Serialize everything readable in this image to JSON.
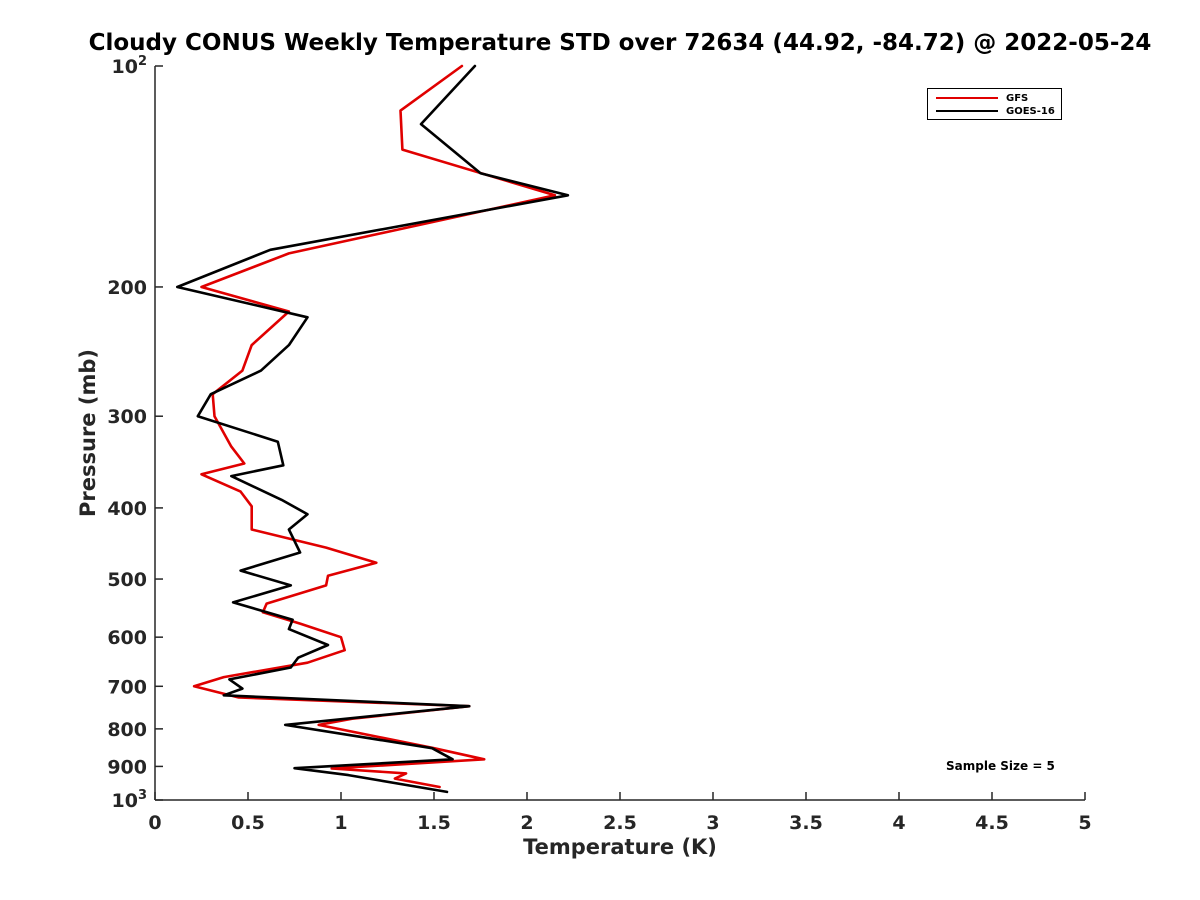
{
  "chart_data": {
    "type": "line",
    "title": "Cloudy CONUS Weekly Temperature STD over 72634 (44.92, -84.72) @ 2022-05-24",
    "xlabel": "Temperature (K)",
    "ylabel": "Pressure (mb)",
    "xlim": [
      0,
      5
    ],
    "ylim": [
      100,
      1000
    ],
    "y_scale": "log",
    "y_reversed": true,
    "grid": false,
    "legend_position": "top-right",
    "x_ticks": [
      "0",
      "0.5",
      "1",
      "1.5",
      "2",
      "2.5",
      "3",
      "3.5",
      "4",
      "4.5",
      "5"
    ],
    "y_ticks": [
      {
        "value": 100,
        "label": "10",
        "sup": "2"
      },
      {
        "value": 200,
        "label": "200",
        "sup": ""
      },
      {
        "value": 300,
        "label": "300",
        "sup": ""
      },
      {
        "value": 400,
        "label": "400",
        "sup": ""
      },
      {
        "value": 500,
        "label": "500",
        "sup": ""
      },
      {
        "value": 600,
        "label": "600",
        "sup": ""
      },
      {
        "value": 700,
        "label": "700",
        "sup": ""
      },
      {
        "value": 800,
        "label": "800",
        "sup": ""
      },
      {
        "value": 900,
        "label": "900",
        "sup": ""
      },
      {
        "value": 1000,
        "label": "10",
        "sup": "3"
      }
    ],
    "annotation": "Sample Size = 5",
    "series": [
      {
        "name": "GFS",
        "color": "#e00000",
        "points": [
          [
            1.65,
            100
          ],
          [
            1.32,
            115
          ],
          [
            1.33,
            130
          ],
          [
            2.15,
            150
          ],
          [
            0.72,
            180
          ],
          [
            0.25,
            200
          ],
          [
            0.72,
            216
          ],
          [
            0.52,
            240
          ],
          [
            0.47,
            260
          ],
          [
            0.31,
            280
          ],
          [
            0.32,
            300
          ],
          [
            0.41,
            330
          ],
          [
            0.48,
            348
          ],
          [
            0.25,
            360
          ],
          [
            0.46,
            380
          ],
          [
            0.52,
            398
          ],
          [
            0.52,
            428
          ],
          [
            0.92,
            453
          ],
          [
            1.19,
            475
          ],
          [
            0.93,
            495
          ],
          [
            0.92,
            510
          ],
          [
            0.6,
            540
          ],
          [
            0.58,
            555
          ],
          [
            0.78,
            575
          ],
          [
            1.0,
            600
          ],
          [
            1.02,
            625
          ],
          [
            0.82,
            650
          ],
          [
            0.37,
            680
          ],
          [
            0.21,
            700
          ],
          [
            0.45,
            725
          ],
          [
            1.69,
            745
          ],
          [
            1.06,
            775
          ],
          [
            0.88,
            790
          ],
          [
            1.5,
            850
          ],
          [
            1.77,
            880
          ],
          [
            0.95,
            906
          ],
          [
            1.35,
            920
          ],
          [
            1.29,
            935
          ],
          [
            1.53,
            960
          ]
        ]
      },
      {
        "name": "GOES-16",
        "color": "#000000",
        "points": [
          [
            1.72,
            100
          ],
          [
            1.43,
            120
          ],
          [
            1.75,
            140
          ],
          [
            2.22,
            150
          ],
          [
            0.62,
            178
          ],
          [
            0.12,
            200
          ],
          [
            0.82,
            220
          ],
          [
            0.72,
            240
          ],
          [
            0.57,
            260
          ],
          [
            0.3,
            280
          ],
          [
            0.23,
            300
          ],
          [
            0.66,
            325
          ],
          [
            0.69,
            350
          ],
          [
            0.41,
            362
          ],
          [
            0.68,
            390
          ],
          [
            0.82,
            408
          ],
          [
            0.72,
            428
          ],
          [
            0.78,
            460
          ],
          [
            0.46,
            487
          ],
          [
            0.73,
            510
          ],
          [
            0.42,
            538
          ],
          [
            0.74,
            568
          ],
          [
            0.72,
            585
          ],
          [
            0.93,
            615
          ],
          [
            0.77,
            640
          ],
          [
            0.73,
            660
          ],
          [
            0.4,
            685
          ],
          [
            0.47,
            705
          ],
          [
            0.37,
            720
          ],
          [
            1.69,
            745
          ],
          [
            0.7,
            790
          ],
          [
            1.49,
            850
          ],
          [
            1.6,
            880
          ],
          [
            0.75,
            905
          ],
          [
            1.04,
            925
          ],
          [
            1.57,
            975
          ]
        ]
      }
    ]
  }
}
